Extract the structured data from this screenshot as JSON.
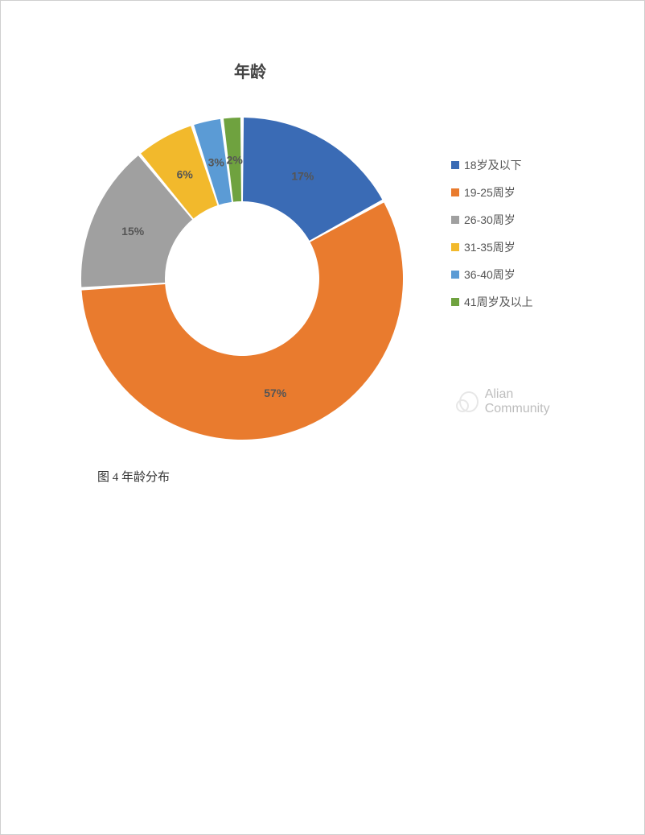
{
  "chart": {
    "type": "donut",
    "title": "年龄",
    "title_fontsize": 20,
    "title_color": "#444444",
    "background_color": "#ffffff",
    "inner_radius_ratio": 0.48,
    "outer_radius": 200,
    "start_angle_deg": -90,
    "slice_gap_deg": 1.2,
    "label_fontsize": 14,
    "label_color": "#555555",
    "label_fontweight": "bold",
    "slices": [
      {
        "label": "18岁及以下",
        "value": 17,
        "display": "17%",
        "color": "#3a6bb5"
      },
      {
        "label": "19-25周岁",
        "value": 57,
        "display": "57%",
        "color": "#e97b2e"
      },
      {
        "label": "26-30周岁",
        "value": 15,
        "display": "15%",
        "color": "#a0a0a0"
      },
      {
        "label": "31-35周岁",
        "value": 6,
        "display": "6%",
        "color": "#f2b92c"
      },
      {
        "label": "36-40周岁",
        "value": 3,
        "display": "3%",
        "color": "#5b9bd5"
      },
      {
        "label": "41周岁及以上",
        "value": 2,
        "display": "2%",
        "color": "#6fa23f"
      }
    ],
    "legend": {
      "position": "right",
      "swatch_size": 10,
      "fontsize": 14,
      "text_color": "#555555",
      "items": [
        {
          "label": "18岁及以下",
          "color": "#3a6bb5"
        },
        {
          "label": "19-25周岁",
          "color": "#e97b2e"
        },
        {
          "label": "26-30周岁",
          "color": "#a0a0a0"
        },
        {
          "label": "31-35周岁",
          "color": "#f2b92c"
        },
        {
          "label": "36-40周岁",
          "color": "#5b9bd5"
        },
        {
          "label": "41周岁及以上",
          "color": "#6fa23f"
        }
      ]
    }
  },
  "watermark": {
    "text": "Alian Community",
    "color": "#bdbdbd",
    "fontsize": 16,
    "icon": "wechat-icon"
  },
  "caption": {
    "text": "图 4 年龄分布",
    "fontsize": 15,
    "color": "#333333"
  }
}
